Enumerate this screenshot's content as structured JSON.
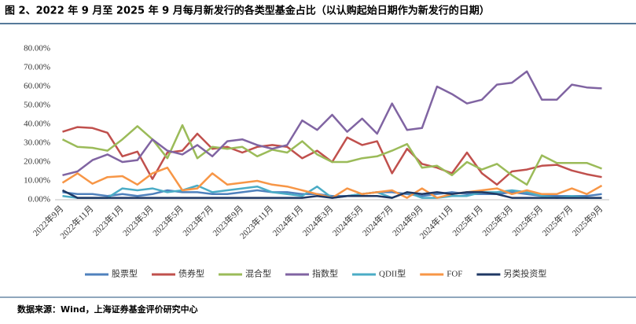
{
  "chart_data": {
    "type": "line",
    "title": "图 2、2022 年 9 月至 2025 年 9 月每月新发行的各类型基金占比（以认购起始日期作为新发行的日期）",
    "source": "数据来源：Wind，上海证券基金评价研究中心",
    "categories": [
      "2022年9月",
      null,
      "2022年11月",
      null,
      "2023年1月",
      null,
      "2023年3月",
      null,
      "2023年5月",
      null,
      "2023年7月",
      null,
      "2023年9月",
      null,
      "2023年11月",
      null,
      "2024年1月",
      null,
      "2024年3月",
      null,
      "2024年5月",
      null,
      "2024年7月",
      null,
      "2024年9月",
      null,
      "2024年11月",
      null,
      "2025年1月",
      null,
      "2025年3月",
      null,
      "2025年5月",
      null,
      "2025年7月",
      null,
      "2025年9月"
    ],
    "ylim": [
      0,
      80
    ],
    "yticks": [
      {
        "value": 0,
        "label": "0.00%"
      },
      {
        "value": 10,
        "label": "10.00%"
      },
      {
        "value": 20,
        "label": "20.00%"
      },
      {
        "value": 30,
        "label": "30.00%"
      },
      {
        "value": 40,
        "label": "40.00%"
      },
      {
        "value": 50,
        "label": "50.00%"
      },
      {
        "value": 60,
        "label": "60.00%"
      },
      {
        "value": 70,
        "label": "70.00%"
      },
      {
        "value": 80,
        "label": "80.00%"
      }
    ],
    "grid": false,
    "legend": "bottom",
    "series": [
      {
        "name": "股票型",
        "color": "#4f81bd",
        "values": [
          4,
          3,
          3,
          2,
          3,
          2,
          3,
          5,
          4,
          4,
          3,
          3,
          4,
          5,
          4,
          4,
          3,
          3,
          2,
          2,
          3,
          4,
          4,
          3,
          2,
          3,
          4,
          3,
          3,
          3,
          4,
          3,
          2,
          2,
          2,
          2,
          3
        ]
      },
      {
        "name": "债券型",
        "color": "#c0504d",
        "values": [
          36,
          38.5,
          38,
          35.5,
          23,
          25.5,
          11,
          25,
          26,
          35,
          27,
          28,
          25,
          28,
          29,
          28,
          22,
          26,
          20,
          33,
          29,
          31,
          14,
          27,
          19,
          17,
          14,
          25,
          14,
          8,
          15,
          16,
          18,
          18.5,
          15.5,
          13.5,
          12
        ]
      },
      {
        "name": "混合型",
        "color": "#9bbb59",
        "values": [
          32,
          28,
          27.5,
          26,
          32,
          39,
          32,
          22,
          39.5,
          22,
          28,
          27,
          28,
          23,
          26.5,
          25,
          31,
          24,
          20,
          20,
          22,
          23,
          26,
          29.5,
          17,
          18,
          13,
          20,
          16,
          19,
          13,
          8,
          23.5,
          19.5,
          19.5,
          19.5,
          16.5
        ]
      },
      {
        "name": "指数型",
        "color": "#8064a2",
        "values": [
          13,
          15,
          21,
          24,
          20,
          21,
          32,
          26,
          24,
          29,
          23,
          31,
          32,
          29,
          27,
          29,
          42,
          37,
          45,
          36,
          43,
          35,
          51,
          37,
          38,
          60,
          56,
          51,
          53,
          61,
          62,
          68,
          53,
          53,
          61,
          59.5,
          59
        ]
      },
      {
        "name": "QDII型",
        "color": "#4bacc6",
        "values": [
          2,
          1,
          1,
          1,
          6,
          5,
          6,
          4,
          5,
          7.5,
          4,
          5,
          6,
          7,
          4,
          3,
          2,
          7,
          1,
          2,
          3,
          4,
          1,
          4,
          1,
          1,
          2,
          2,
          4,
          4,
          5,
          4,
          2,
          1,
          2,
          1,
          1
        ]
      },
      {
        "name": "FOF",
        "color": "#f79646",
        "values": [
          9,
          14,
          8.5,
          12,
          12.5,
          8,
          14,
          17,
          5,
          6,
          14,
          8,
          9,
          10,
          8,
          7,
          5,
          3,
          1,
          6,
          3,
          4,
          5,
          1,
          6,
          1,
          3,
          4,
          5,
          6,
          3,
          5,
          3,
          3,
          6,
          3,
          7.5
        ]
      },
      {
        "name": "另类投资型",
        "color": "#1f3864",
        "values": [
          5,
          1,
          1,
          1,
          1,
          1,
          1,
          1,
          1,
          1,
          1,
          1,
          1,
          1,
          1,
          1,
          1,
          2,
          1,
          2,
          2,
          2,
          1,
          4,
          3,
          4,
          3,
          4,
          4,
          3,
          1,
          1,
          1,
          1,
          1,
          1,
          1
        ]
      }
    ]
  }
}
